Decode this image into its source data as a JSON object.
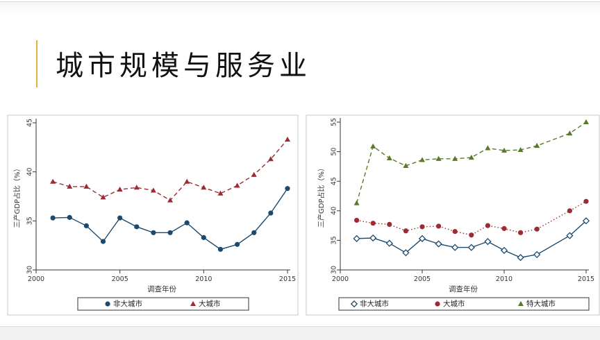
{
  "title": "城市规模与服务业",
  "colors": {
    "accent_bar": "#e2b13c",
    "navy": "#1b4a6e",
    "maroon": "#9b2c33",
    "olive": "#5a7a2b"
  },
  "chart_data": [
    {
      "type": "line",
      "xlabel": "调查年份",
      "ylabel": "三产GDP占比（%）",
      "xlim": [
        2000,
        2015
      ],
      "ylim": [
        30,
        45
      ],
      "xticks": [
        2000,
        2005,
        2010,
        2015
      ],
      "yticks": [
        30,
        35,
        40,
        45
      ],
      "grid": false,
      "legend_position": "bottom",
      "series": [
        {
          "name": "非大城市",
          "marker": "circle",
          "line": "solid",
          "color": "#1b4a6e",
          "x": [
            2001,
            2002,
            2003,
            2004,
            2005,
            2006,
            2007,
            2008,
            2009,
            2010,
            2011,
            2012,
            2013,
            2014,
            2015
          ],
          "y": [
            35.3,
            35.35,
            34.5,
            32.9,
            35.3,
            34.4,
            33.8,
            33.8,
            34.8,
            33.3,
            32.1,
            32.6,
            33.8,
            35.8,
            38.3
          ]
        },
        {
          "name": "大城市",
          "marker": "triangle",
          "line": "dashed",
          "color": "#9b2c33",
          "x": [
            2001,
            2002,
            2003,
            2004,
            2005,
            2006,
            2007,
            2008,
            2009,
            2010,
            2011,
            2012,
            2013,
            2014,
            2015
          ],
          "y": [
            39.0,
            38.5,
            38.5,
            37.4,
            38.2,
            38.4,
            38.1,
            37.1,
            39.0,
            38.4,
            37.8,
            38.6,
            39.7,
            41.3,
            43.3
          ]
        }
      ]
    },
    {
      "type": "line",
      "xlabel": "调查年份",
      "ylabel": "三产GDP占比（%）",
      "xlim": [
        2000,
        2015
      ],
      "ylim": [
        30,
        55
      ],
      "xticks": [
        2000,
        2005,
        2010,
        2015
      ],
      "yticks": [
        30,
        35,
        40,
        45,
        50,
        55
      ],
      "grid": false,
      "legend_position": "bottom",
      "series": [
        {
          "name": "非大城市",
          "marker": "diamond",
          "line": "solid",
          "color": "#1b4a6e",
          "x": [
            2001,
            2002,
            2003,
            2004,
            2005,
            2006,
            2007,
            2008,
            2009,
            2010,
            2011,
            2012,
            2014,
            2015
          ],
          "y": [
            35.3,
            35.4,
            34.5,
            32.9,
            35.3,
            34.4,
            33.8,
            33.8,
            34.8,
            33.3,
            32.1,
            32.6,
            35.8,
            38.3
          ]
        },
        {
          "name": "大城市",
          "marker": "circle",
          "line": "dotted",
          "color": "#9b2c33",
          "x": [
            2001,
            2002,
            2003,
            2004,
            2005,
            2006,
            2007,
            2008,
            2009,
            2010,
            2011,
            2012,
            2014,
            2015
          ],
          "y": [
            38.4,
            37.9,
            37.7,
            36.6,
            37.3,
            37.4,
            36.5,
            35.9,
            37.5,
            37.0,
            36.3,
            36.9,
            40.0,
            41.6
          ]
        },
        {
          "name": "特大城市",
          "marker": "triangle",
          "line": "dashed",
          "color": "#5a7a2b",
          "x": [
            2001,
            2002,
            2003,
            2004,
            2005,
            2006,
            2007,
            2008,
            2009,
            2010,
            2011,
            2012,
            2014,
            2015
          ],
          "y": [
            41.3,
            50.9,
            48.9,
            47.6,
            48.6,
            48.8,
            48.8,
            49.0,
            50.6,
            50.2,
            50.3,
            51.0,
            53.1,
            55.0
          ]
        }
      ]
    }
  ]
}
